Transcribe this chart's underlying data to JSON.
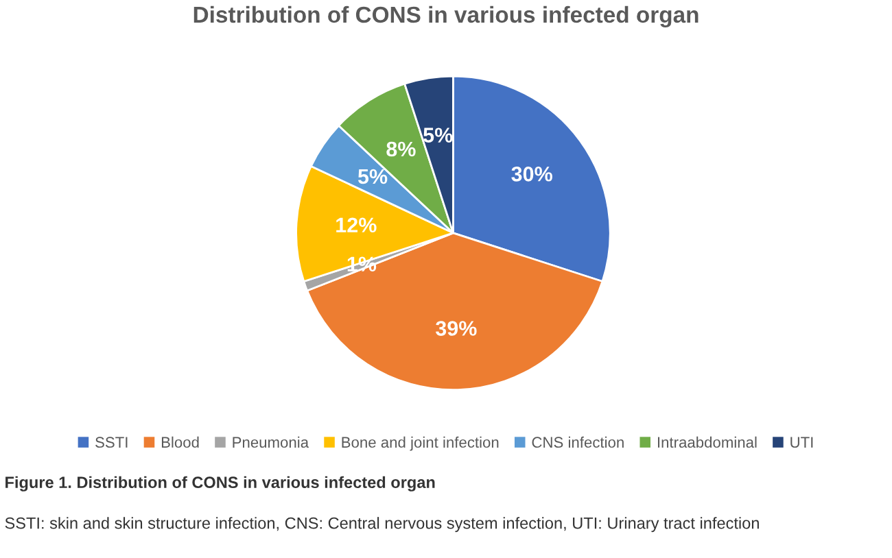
{
  "chart_data": {
    "type": "pie",
    "title": "Distribution of CONS in various infected organ",
    "categories": [
      "SSTI",
      "Blood",
      "Pneumonia",
      "Bone and joint infection",
      "CNS infection",
      "Intraabdominal",
      "UTI"
    ],
    "values": [
      30,
      39,
      1,
      12,
      5,
      8,
      5
    ],
    "colors": [
      "#4472c4",
      "#ed7d31",
      "#a5a5a5",
      "#ffc000",
      "#5b9bd5",
      "#70ad47",
      "#264478"
    ],
    "value_labels": [
      "30%",
      "39%",
      "1%",
      "12%",
      "5%",
      "8%",
      "5%"
    ],
    "legend": "bottom",
    "annotations": [
      "Figure 1. Distribution of CONS in various infected organ",
      "SSTI: skin and skin structure infection, CNS: Central nervous system infection, UTI: Urinary tract infection"
    ]
  }
}
